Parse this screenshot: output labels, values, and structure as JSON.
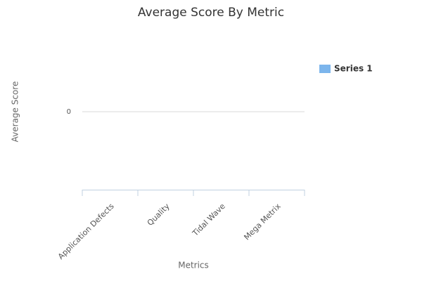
{
  "chart_data": {
    "type": "bar",
    "title": "Average Score By Metric",
    "x_label": "Metrics",
    "y_label": "Average Score",
    "categories": [
      "Application Defects",
      "Quality",
      "Tidal Wave",
      "Mega Metrix"
    ],
    "series": [
      {
        "name": "Series 1",
        "color": "#7cb5ec",
        "values": [
          0,
          0,
          0,
          0
        ]
      }
    ],
    "ylim": [
      -1,
      1
    ],
    "yticks": [
      0
    ],
    "grid": true,
    "legend": "right"
  }
}
